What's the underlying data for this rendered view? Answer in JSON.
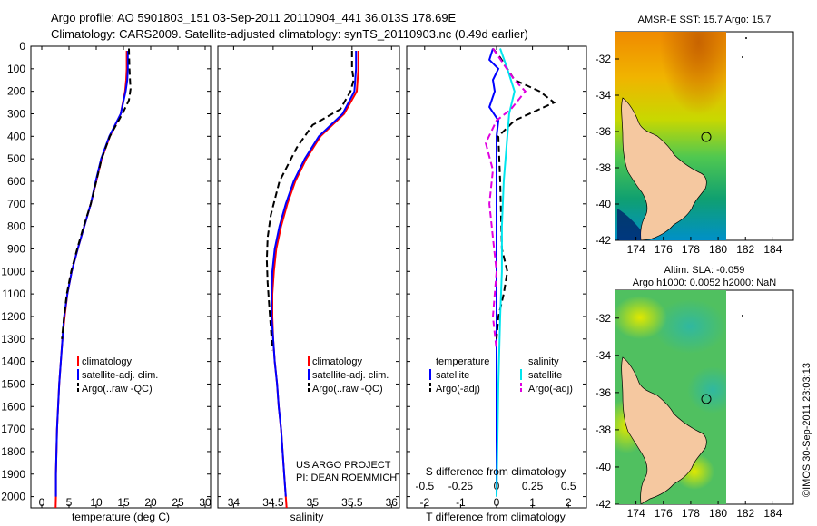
{
  "header": {
    "line1": "Argo profile: AO 5901803_151 03-Sep-2011 20110904_441 36.013S 178.69E",
    "line2": "Climatology: CARS2009. Satellite-adjusted climatology: synTS_20110903.nc (0.49d earlier)"
  },
  "colors": {
    "climatology": "#ff0000",
    "satellite": "#0000ff",
    "argo": "#000000",
    "sat_salinity": "#00e5ee",
    "argo_salinity": "#e000e0",
    "land": "#f5c8a0"
  },
  "chart_data": [
    {
      "id": "temperature",
      "type": "line",
      "xlabel": "temperature (deg C)",
      "ylabel": "",
      "xlim": [
        -2,
        31
      ],
      "ylim": [
        0,
        2050
      ],
      "y_inverted": true,
      "xticks": [
        0,
        5,
        10,
        15,
        20,
        25,
        30
      ],
      "yticks": [
        0,
        100,
        200,
        300,
        400,
        500,
        600,
        700,
        800,
        900,
        1000,
        1100,
        1200,
        1300,
        1400,
        1500,
        1600,
        1700,
        1800,
        1900,
        2000
      ],
      "legend": [
        "climatology",
        "satellite-adj. clim.",
        "Argo(..raw -QC)"
      ],
      "series": [
        {
          "name": "climatology",
          "style": "solid",
          "color": "#ff0000",
          "points": [
            [
              15.6,
              20
            ],
            [
              15.6,
              100
            ],
            [
              15.5,
              150
            ],
            [
              15.3,
              200
            ],
            [
              14.5,
              300
            ],
            [
              12.5,
              400
            ],
            [
              11.0,
              500
            ],
            [
              10.0,
              600
            ],
            [
              9.0,
              700
            ],
            [
              7.8,
              800
            ],
            [
              6.6,
              900
            ],
            [
              5.5,
              1000
            ],
            [
              4.7,
              1100
            ],
            [
              4.2,
              1200
            ],
            [
              3.8,
              1300
            ],
            [
              3.5,
              1400
            ],
            [
              3.2,
              1500
            ],
            [
              3.0,
              1600
            ],
            [
              2.8,
              1700
            ],
            [
              2.7,
              1800
            ],
            [
              2.6,
              1900
            ],
            [
              2.6,
              2000
            ],
            [
              2.55,
              2050
            ]
          ]
        },
        {
          "name": "satellite-adj. clim.",
          "style": "solid",
          "color": "#0000ff",
          "points": [
            [
              15.8,
              20
            ],
            [
              15.8,
              100
            ],
            [
              15.7,
              150
            ],
            [
              15.4,
              200
            ],
            [
              14.5,
              300
            ],
            [
              12.4,
              400
            ],
            [
              10.9,
              500
            ],
            [
              9.9,
              600
            ],
            [
              9.0,
              700
            ],
            [
              7.8,
              800
            ],
            [
              6.6,
              900
            ],
            [
              5.5,
              1000
            ],
            [
              4.7,
              1100
            ],
            [
              4.1,
              1200
            ],
            [
              3.8,
              1300
            ],
            [
              3.5,
              1400
            ],
            [
              3.2,
              1500
            ],
            [
              3.0,
              1600
            ],
            [
              2.8,
              1700
            ],
            [
              2.7,
              1800
            ],
            [
              2.6,
              1900
            ],
            [
              2.6,
              2000
            ]
          ]
        },
        {
          "name": "Argo(..raw -QC)",
          "style": "dashed",
          "color": "#000000",
          "points": [
            [
              16.0,
              10
            ],
            [
              16.1,
              100
            ],
            [
              16.2,
              150
            ],
            [
              16.3,
              190
            ],
            [
              16.0,
              240
            ],
            [
              14.8,
              300
            ],
            [
              12.5,
              400
            ],
            [
              11.0,
              500
            ],
            [
              10.0,
              600
            ],
            [
              9.0,
              700
            ],
            [
              7.7,
              800
            ],
            [
              6.5,
              900
            ],
            [
              5.4,
              1000
            ],
            [
              4.6,
              1100
            ],
            [
              4.1,
              1200
            ],
            [
              3.7,
              1300
            ]
          ]
        }
      ]
    },
    {
      "id": "salinity",
      "type": "line",
      "xlabel": "salinity",
      "ylabel": "",
      "xlim": [
        33.8,
        36.1
      ],
      "ylim": [
        0,
        2050
      ],
      "y_inverted": true,
      "xticks": [
        34,
        34.5,
        35,
        35.5,
        36
      ],
      "legend": [
        "climatology",
        "satellite-adj. clim.",
        "Argo(..raw -QC)"
      ],
      "annotation_lines": [
        "US ARGO PROJECT",
        "PI: DEAN ROEMMICH"
      ],
      "series": [
        {
          "name": "climatology",
          "style": "solid",
          "color": "#ff0000",
          "points": [
            [
              35.58,
              20
            ],
            [
              35.58,
              100
            ],
            [
              35.56,
              200
            ],
            [
              35.4,
              300
            ],
            [
              35.1,
              400
            ],
            [
              34.92,
              500
            ],
            [
              34.78,
              600
            ],
            [
              34.68,
              700
            ],
            [
              34.6,
              800
            ],
            [
              34.54,
              900
            ],
            [
              34.51,
              1000
            ],
            [
              34.49,
              1100
            ],
            [
              34.49,
              1200
            ],
            [
              34.5,
              1300
            ],
            [
              34.52,
              1400
            ],
            [
              34.55,
              1500
            ],
            [
              34.57,
              1600
            ],
            [
              34.6,
              1700
            ],
            [
              34.62,
              1800
            ],
            [
              34.64,
              1900
            ],
            [
              34.66,
              2000
            ],
            [
              34.67,
              2050
            ]
          ]
        },
        {
          "name": "satellite-adj. clim.",
          "style": "solid",
          "color": "#0000ff",
          "points": [
            [
              35.55,
              20
            ],
            [
              35.55,
              100
            ],
            [
              35.53,
              200
            ],
            [
              35.38,
              300
            ],
            [
              35.08,
              400
            ],
            [
              34.9,
              500
            ],
            [
              34.76,
              600
            ],
            [
              34.66,
              700
            ],
            [
              34.58,
              800
            ],
            [
              34.52,
              900
            ],
            [
              34.49,
              1000
            ],
            [
              34.48,
              1100
            ],
            [
              34.48,
              1200
            ],
            [
              34.5,
              1300
            ],
            [
              34.52,
              1400
            ],
            [
              34.55,
              1500
            ],
            [
              34.57,
              1600
            ],
            [
              34.6,
              1700
            ],
            [
              34.62,
              1800
            ],
            [
              34.64,
              1900
            ],
            [
              34.66,
              2000
            ]
          ]
        },
        {
          "name": "Argo(..raw -QC)",
          "style": "dashed",
          "color": "#000000",
          "points": [
            [
              35.5,
              20
            ],
            [
              35.5,
              100
            ],
            [
              35.52,
              150
            ],
            [
              35.48,
              200
            ],
            [
              35.35,
              280
            ],
            [
              35.0,
              350
            ],
            [
              34.8,
              450
            ],
            [
              34.58,
              600
            ],
            [
              34.47,
              750
            ],
            [
              34.43,
              850
            ],
            [
              34.42,
              950
            ],
            [
              34.43,
              1050
            ],
            [
              34.45,
              1150
            ],
            [
              34.47,
              1250
            ],
            [
              34.49,
              1350
            ]
          ]
        }
      ]
    },
    {
      "id": "difference",
      "type": "line",
      "xlabel_top": "S difference from climatology",
      "xlabel": "T difference from climatology",
      "xlim": [
        -2.5,
        2.5
      ],
      "ylim": [
        0,
        2050
      ],
      "y_inverted": true,
      "xticks": [
        -2,
        -1,
        0,
        1,
        2
      ],
      "xticks_salinity": [
        -0.5,
        -0.25,
        0,
        0.25,
        0.5
      ],
      "legend_temperature_title": "temperature",
      "legend_salinity_title": "salinity",
      "legend": [
        "satellite",
        "Argo(-adj)",
        "satellite",
        "Argo(-adj)"
      ],
      "series": [
        {
          "name": "temperature satellite",
          "style": "solid",
          "color": "#0000ff",
          "points": [
            [
              -0.1,
              10
            ],
            [
              -0.2,
              60
            ],
            [
              0.05,
              100
            ],
            [
              -0.1,
              150
            ],
            [
              -0.05,
              200
            ],
            [
              -0.2,
              270
            ],
            [
              0.05,
              330
            ],
            [
              0,
              400
            ],
            [
              0,
              500
            ],
            [
              0,
              700
            ],
            [
              0,
              1000
            ],
            [
              0,
              1500
            ],
            [
              0,
              2000
            ]
          ]
        },
        {
          "name": "temperature Argo(-adj)",
          "style": "dashed",
          "color": "#000000",
          "points": [
            [
              -0.1,
              10
            ],
            [
              0.1,
              50
            ],
            [
              0.5,
              150
            ],
            [
              1.2,
              200
            ],
            [
              1.6,
              250
            ],
            [
              0.5,
              330
            ],
            [
              0.05,
              400
            ],
            [
              0.1,
              600
            ],
            [
              0.15,
              900
            ],
            [
              0.3,
              1000
            ],
            [
              0.2,
              1100
            ],
            [
              0.05,
              1200
            ],
            [
              0,
              1300
            ]
          ]
        },
        {
          "name": "salinity satellite",
          "style": "solid",
          "color": "#00e5ee",
          "points": [
            [
              0.1,
              10
            ],
            [
              0.3,
              100
            ],
            [
              0.5,
              200
            ],
            [
              0.35,
              300
            ],
            [
              0.3,
              400
            ],
            [
              0.2,
              600
            ],
            [
              0.15,
              800
            ],
            [
              0.15,
              1000
            ],
            [
              0.1,
              1200
            ],
            [
              0.05,
              1500
            ],
            [
              0,
              2000
            ]
          ]
        },
        {
          "name": "salinity Argo(-adj)",
          "style": "dashed",
          "color": "#e000e0",
          "points": [
            [
              -0.1,
              10
            ],
            [
              0.5,
              150
            ],
            [
              0.8,
              200
            ],
            [
              0.4,
              280
            ],
            [
              0,
              330
            ],
            [
              -0.3,
              430
            ],
            [
              -0.1,
              550
            ],
            [
              -0.2,
              700
            ],
            [
              -0.1,
              850
            ],
            [
              0,
              1000
            ],
            [
              -0.1,
              1200
            ],
            [
              0,
              1350
            ]
          ]
        }
      ]
    },
    {
      "id": "sst_map",
      "type": "heatmap",
      "title": "AMSR-E SST: 15.7 Argo: 15.7",
      "xticks": [
        174,
        176,
        178,
        180,
        182,
        184
      ],
      "yticks": [
        -32,
        -34,
        -36,
        -38,
        -40,
        -42
      ],
      "xlim": [
        172.5,
        185.5
      ],
      "ylim": [
        -42,
        -30.5
      ],
      "argo_position": {
        "lon": 178.69,
        "lat": -36.013
      }
    },
    {
      "id": "sla_map",
      "type": "heatmap",
      "title": "Altim. SLA: -0.059",
      "subtitle": "Argo h1000: 0.0052 h2000: NaN",
      "xticks": [
        174,
        176,
        178,
        180,
        182,
        184
      ],
      "yticks": [
        -32,
        -34,
        -36,
        -38,
        -40,
        -42
      ],
      "xlim": [
        172.5,
        185.5
      ],
      "ylim": [
        -42,
        -30.5
      ],
      "argo_position": {
        "lon": 178.69,
        "lat": -36.013
      }
    }
  ],
  "footer": {
    "credit": "©IMOS 30-Sep-2011 23:03:13"
  }
}
